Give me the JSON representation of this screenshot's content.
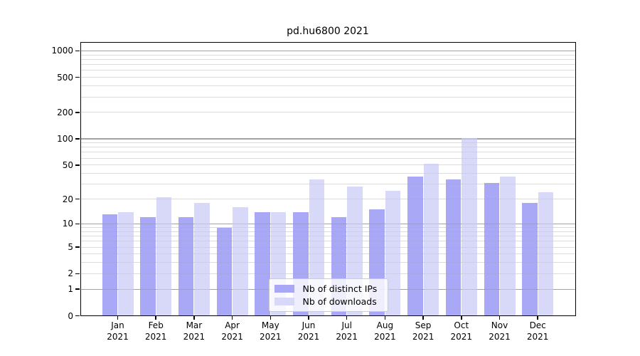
{
  "chart_data": {
    "type": "bar",
    "title": "pd.hu6800 2021",
    "scale": "log10(value+1)",
    "grid": "on",
    "legend_position": "lower-center",
    "year_label": "2021",
    "categories": [
      "Jan",
      "Feb",
      "Mar",
      "Apr",
      "May",
      "Jun",
      "Jul",
      "Aug",
      "Sep",
      "Oct",
      "Nov",
      "Dec"
    ],
    "series": [
      {
        "name": "Nb of distinct IPs",
        "color": "#a8a8f6",
        "values": [
          13,
          12,
          12,
          9,
          14,
          14,
          12,
          15,
          37,
          34,
          31,
          18
        ]
      },
      {
        "name": "Nb of downloads",
        "color": "#d8d8f8",
        "values": [
          14,
          21,
          18,
          16,
          14,
          34,
          28,
          25,
          52,
          101,
          37,
          24
        ]
      }
    ],
    "y_ticks": [
      0,
      1,
      2,
      5,
      10,
      20,
      50,
      100,
      200,
      500,
      1000
    ],
    "ylim": [
      0,
      1240
    ],
    "xlabel": "",
    "ylabel": "",
    "colors": {
      "axis": "#000000",
      "major_grid": "#b4b4b4",
      "minor_grid": "#e8e8e8",
      "background": "#ffffff"
    }
  }
}
